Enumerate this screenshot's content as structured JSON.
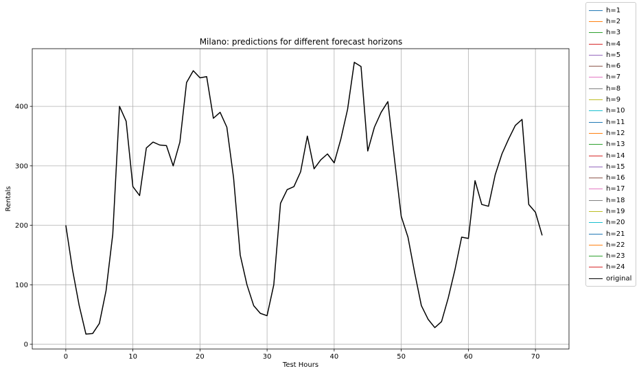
{
  "chart_data": {
    "type": "line",
    "title": "Milano: predictions for different forecast horizons",
    "xlabel": "Test Hours",
    "ylabel": "Rentals",
    "xlim": [
      -5,
      75
    ],
    "ylim": [
      -8,
      497
    ],
    "xticks": [
      0,
      10,
      20,
      30,
      40,
      50,
      60,
      70
    ],
    "yticks": [
      0,
      100,
      200,
      300,
      400
    ],
    "grid": true,
    "legend_position": "outside-right",
    "series": [
      {
        "name": "h=1",
        "color": "#1f77b4"
      },
      {
        "name": "h=2",
        "color": "#ff7f0e"
      },
      {
        "name": "h=3",
        "color": "#2ca02c"
      },
      {
        "name": "h=4",
        "color": "#d62728"
      },
      {
        "name": "h=5",
        "color": "#9467bd"
      },
      {
        "name": "h=6",
        "color": "#8c564b"
      },
      {
        "name": "h=7",
        "color": "#e377c2"
      },
      {
        "name": "h=8",
        "color": "#7f7f7f"
      },
      {
        "name": "h=9",
        "color": "#bcbd22"
      },
      {
        "name": "h=10",
        "color": "#17becf"
      },
      {
        "name": "h=11",
        "color": "#1f77b4"
      },
      {
        "name": "h=12",
        "color": "#ff7f0e"
      },
      {
        "name": "h=13",
        "color": "#2ca02c"
      },
      {
        "name": "h=14",
        "color": "#d62728"
      },
      {
        "name": "h=15",
        "color": "#9467bd"
      },
      {
        "name": "h=16",
        "color": "#8c564b"
      },
      {
        "name": "h=17",
        "color": "#e377c2"
      },
      {
        "name": "h=18",
        "color": "#7f7f7f"
      },
      {
        "name": "h=19",
        "color": "#bcbd22"
      },
      {
        "name": "h=20",
        "color": "#17becf"
      },
      {
        "name": "h=21",
        "color": "#1f77b4"
      },
      {
        "name": "h=22",
        "color": "#ff7f0e"
      },
      {
        "name": "h=23",
        "color": "#2ca02c"
      },
      {
        "name": "h=24",
        "color": "#d62728"
      },
      {
        "name": "original",
        "color": "#000000",
        "x": [
          0,
          1,
          2,
          3,
          4,
          5,
          6,
          7,
          8,
          9,
          10,
          11,
          12,
          13,
          14,
          15,
          16,
          17,
          18,
          19,
          20,
          21,
          22,
          23,
          24,
          25,
          26,
          27,
          28,
          29,
          30,
          31,
          32,
          33,
          34,
          35,
          36,
          37,
          38,
          39,
          40,
          41,
          42,
          43,
          44,
          45,
          46,
          47,
          48,
          49,
          50,
          51,
          52,
          53,
          54,
          55,
          56,
          57,
          58,
          59,
          60,
          61,
          62,
          63,
          64,
          65,
          66,
          67,
          68,
          69,
          70,
          71
        ],
        "y": [
          200,
          125,
          65,
          17,
          18,
          35,
          90,
          185,
          400,
          375,
          265,
          250,
          330,
          340,
          335,
          334,
          300,
          340,
          440,
          460,
          448,
          450,
          380,
          390,
          365,
          280,
          150,
          100,
          65,
          52,
          48,
          100,
          237,
          260,
          265,
          290,
          350,
          295,
          310,
          320,
          305,
          345,
          395,
          474,
          467,
          325,
          365,
          390,
          408,
          310,
          215,
          180,
          120,
          65,
          42,
          28,
          38,
          78,
          125,
          180,
          178,
          275,
          235,
          232,
          285,
          320,
          345,
          368,
          378,
          235,
          222,
          183
        ]
      }
    ]
  }
}
